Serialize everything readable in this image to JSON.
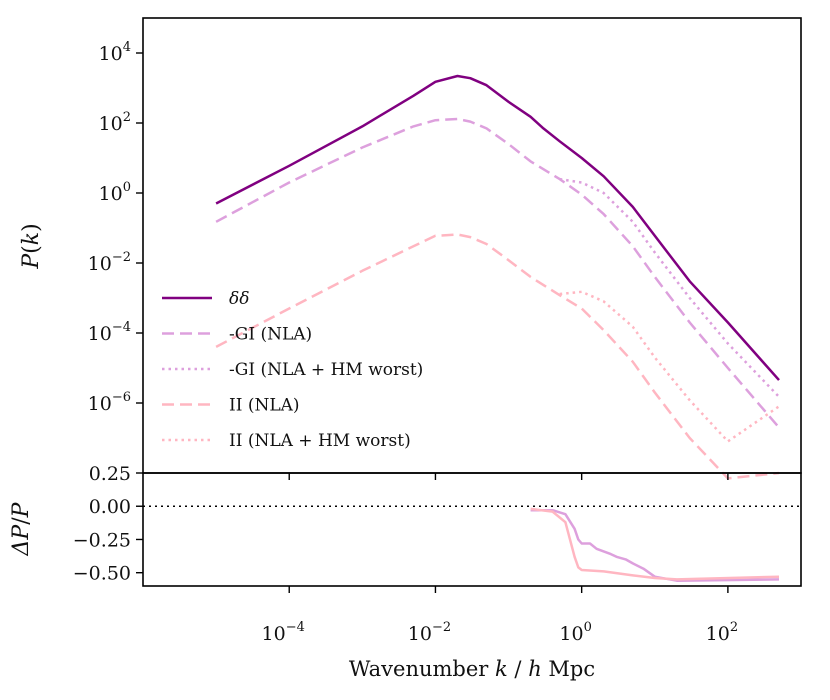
{
  "chart_data": [
    {
      "type": "line",
      "title": "",
      "xlabel": "",
      "ylabel": "P(k)",
      "xscale": "log",
      "yscale": "log",
      "xlim": [
        1e-06,
        1000
      ],
      "ylim": [
        1e-08,
        100000.0
      ],
      "x_tick_labels": [
        "10^-4",
        "10^-2",
        "10^0",
        "10^2"
      ],
      "y_tick_labels": [
        "10^4",
        "10^2",
        "10^0",
        "10^-2",
        "10^-4",
        "10^-6"
      ],
      "legend_position": "lower-left",
      "series": [
        {
          "name": "δδ",
          "color": "#800080",
          "dash": "solid",
          "points": [
            [
              1e-05,
              0.5
            ],
            [
              0.0001,
              6
            ],
            [
              0.001,
              80
            ],
            [
              0.005,
              600
            ],
            [
              0.01,
              1500
            ],
            [
              0.02,
              2200
            ],
            [
              0.03,
              1900
            ],
            [
              0.05,
              1200
            ],
            [
              0.1,
              400
            ],
            [
              0.2,
              150
            ],
            [
              0.3,
              70
            ],
            [
              0.5,
              30
            ],
            [
              1,
              10
            ],
            [
              2,
              3
            ],
            [
              5,
              0.4
            ],
            [
              10,
              0.06
            ],
            [
              30,
              0.003
            ],
            [
              100,
              0.0002
            ],
            [
              500,
              4.5e-06
            ]
          ]
        },
        {
          "name": "-GI (NLA)",
          "color": "#dda0dd",
          "dash": "dashed",
          "points": [
            [
              1e-05,
              0.15
            ],
            [
              0.0001,
              2
            ],
            [
              0.001,
              20
            ],
            [
              0.005,
              80
            ],
            [
              0.01,
              120
            ],
            [
              0.02,
              130
            ],
            [
              0.03,
              110
            ],
            [
              0.05,
              70
            ],
            [
              0.1,
              25
            ],
            [
              0.2,
              8
            ],
            [
              0.5,
              2.5
            ],
            [
              1,
              0.9
            ],
            [
              2,
              0.25
            ],
            [
              5,
              0.03
            ],
            [
              10,
              0.004
            ],
            [
              30,
              0.0002
            ],
            [
              100,
              1e-05
            ],
            [
              500,
              2e-07
            ]
          ]
        },
        {
          "name": "-GI (NLA + HM worst)",
          "color": "#dda0dd",
          "dash": "dotted",
          "points": [
            [
              0.5,
              2.5
            ],
            [
              1,
              2
            ],
            [
              2,
              1
            ],
            [
              5,
              0.15
            ],
            [
              10,
              0.02
            ],
            [
              30,
              0.001
            ],
            [
              100,
              5e-05
            ],
            [
              500,
              1.5e-06
            ]
          ]
        },
        {
          "name": "II (NLA)",
          "color": "#ffb6c1",
          "dash": "dashed",
          "points": [
            [
              1e-05,
              4e-05
            ],
            [
              0.0001,
              0.0005
            ],
            [
              0.001,
              0.006
            ],
            [
              0.005,
              0.03
            ],
            [
              0.01,
              0.06
            ],
            [
              0.02,
              0.065
            ],
            [
              0.03,
              0.055
            ],
            [
              0.05,
              0.035
            ],
            [
              0.1,
              0.012
            ],
            [
              0.2,
              0.004
            ],
            [
              0.5,
              0.0012
            ],
            [
              1,
              0.0005
            ],
            [
              2,
              0.00012
            ],
            [
              5,
              1.5e-05
            ],
            [
              10,
              2e-06
            ],
            [
              30,
              1e-07
            ],
            [
              100,
              7e-09
            ],
            [
              500,
              1e-08
            ]
          ]
        },
        {
          "name": "II (NLA + HM worst)",
          "color": "#ffb6c1",
          "dash": "dotted",
          "points": [
            [
              0.5,
              0.0013
            ],
            [
              1,
              0.0015
            ],
            [
              2,
              0.0008
            ],
            [
              5,
              0.00015
            ],
            [
              10,
              2e-05
            ],
            [
              30,
              1.2e-06
            ],
            [
              100,
              8e-08
            ],
            [
              500,
              8e-07
            ]
          ]
        }
      ]
    },
    {
      "type": "line",
      "title": "",
      "xlabel": "Wavenumber k / h Mpc",
      "ylabel": "ΔP/P",
      "xscale": "log",
      "xlim": [
        1e-06,
        1000
      ],
      "ylim": [
        -0.6,
        0.25
      ],
      "x_tick_labels": [
        "10^-4",
        "10^-2",
        "10^0",
        "10^2"
      ],
      "y_tick_labels": [
        "0.25",
        "0.00",
        "−0.25",
        "−0.50"
      ],
      "reference_line": {
        "y": 0,
        "style": "dotted",
        "color": "#000000"
      },
      "series": [
        {
          "color": "#dda0dd",
          "points": [
            [
              0.2,
              -0.03
            ],
            [
              0.4,
              -0.03
            ],
            [
              0.6,
              -0.06
            ],
            [
              0.8,
              -0.17
            ],
            [
              0.9,
              -0.25
            ],
            [
              1,
              -0.28
            ],
            [
              1.3,
              -0.28
            ],
            [
              1.6,
              -0.32
            ],
            [
              2,
              -0.34
            ],
            [
              2.5,
              -0.36
            ],
            [
              3,
              -0.38
            ],
            [
              4,
              -0.4
            ],
            [
              5,
              -0.43
            ],
            [
              7,
              -0.47
            ],
            [
              10,
              -0.53
            ],
            [
              20,
              -0.56
            ],
            [
              500,
              -0.55
            ]
          ]
        },
        {
          "color": "#ffb6c1",
          "points": [
            [
              0.2,
              -0.02
            ],
            [
              0.4,
              -0.04
            ],
            [
              0.6,
              -0.12
            ],
            [
              0.8,
              -0.38
            ],
            [
              0.9,
              -0.46
            ],
            [
              1,
              -0.48
            ],
            [
              2,
              -0.49
            ],
            [
              5,
              -0.52
            ],
            [
              10,
              -0.54
            ],
            [
              20,
              -0.55
            ],
            [
              500,
              -0.53
            ]
          ]
        }
      ]
    }
  ]
}
